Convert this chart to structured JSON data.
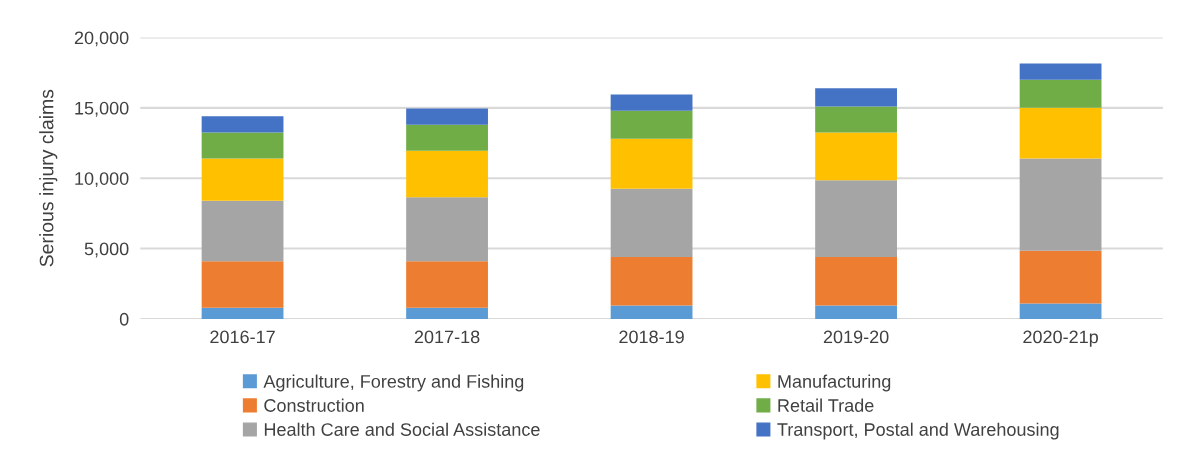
{
  "chart_data": {
    "type": "bar",
    "stacked": true,
    "ylabel": "Serious injury claims",
    "categories": [
      "2016-17",
      "2017-18",
      "2018-19",
      "2019-20",
      "2020-21p"
    ],
    "series": [
      {
        "name": "Agriculture, Forestry and Fishing",
        "color": "#5b9bd5",
        "values": [
          800,
          800,
          950,
          950,
          1100
        ]
      },
      {
        "name": "Construction",
        "color": "#ed7d31",
        "values": [
          3300,
          3300,
          3450,
          3450,
          3750
        ]
      },
      {
        "name": "Health Care and Social Assistance",
        "color": "#a5a5a5",
        "values": [
          4300,
          4550,
          4850,
          5450,
          6550
        ]
      },
      {
        "name": "Manufacturing",
        "color": "#ffc000",
        "values": [
          3000,
          3300,
          3550,
          3400,
          3600
        ]
      },
      {
        "name": "Retail Trade",
        "color": "#70ad47",
        "values": [
          1850,
          1850,
          2000,
          1850,
          2000
        ]
      },
      {
        "name": "Transport, Postal and Warehousing",
        "color": "#4472c4",
        "values": [
          1150,
          1150,
          1150,
          1300,
          1150
        ]
      }
    ],
    "ylim": [
      0,
      20000
    ],
    "yticks": [
      {
        "value": 0,
        "label": "0"
      },
      {
        "value": 5000,
        "label": "5,000"
      },
      {
        "value": 10000,
        "label": "10,000"
      },
      {
        "value": 15000,
        "label": "15,000"
      },
      {
        "value": 20000,
        "label": "20,000"
      }
    ],
    "grid": "y",
    "legend": "bottom"
  }
}
